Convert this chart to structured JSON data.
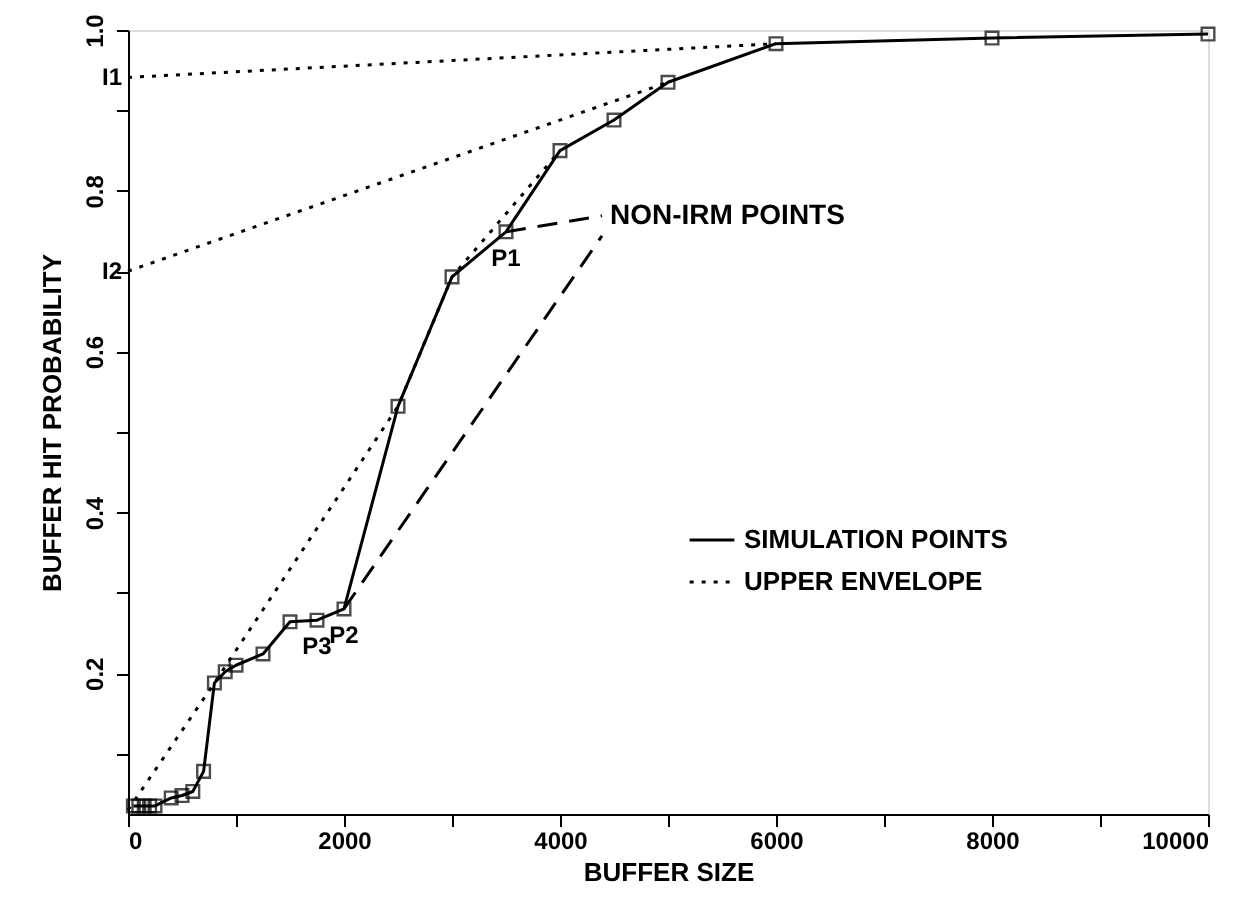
{
  "chart_data": {
    "type": "line",
    "xlabel": "BUFFER SIZE",
    "ylabel": "BUFFER HIT PROBABILITY",
    "xlim": [
      0,
      10000
    ],
    "ylim": [
      0.025,
      1.0
    ],
    "xticks": [
      0,
      {
        "value": 1000,
        "label": null
      },
      2000,
      {
        "value": 3000,
        "label": null
      },
      4000,
      {
        "value": 5000,
        "label": null
      },
      6000,
      {
        "value": 7000,
        "label": null
      },
      8000,
      {
        "value": 9000,
        "label": null
      },
      10000
    ],
    "yticks": [
      {
        "value": 0.1,
        "label": null
      },
      0.2,
      {
        "value": 0.3,
        "label": null
      },
      0.4,
      {
        "value": 0.5,
        "label": null
      },
      0.6,
      {
        "value": 0.7,
        "label": null
      },
      0.8,
      {
        "value": 0.9,
        "label": null
      },
      {
        "value": 1.0,
        "label": "1.0"
      }
    ],
    "series": [
      {
        "name": "SIMULATION POINTS",
        "color": "#000000",
        "line_style": "solid",
        "marker": "square",
        "x": [
          50,
          100,
          150,
          200,
          250,
          400,
          500,
          600,
          700,
          800,
          900,
          1000,
          1250,
          1500,
          1750,
          2000,
          2500,
          3000,
          3500,
          4000,
          4500,
          5000,
          6000,
          8000,
          10000
        ],
        "values": [
          0.035,
          0.035,
          0.035,
          0.035,
          0.035,
          0.045,
          0.048,
          0.053,
          0.078,
          0.188,
          0.202,
          0.21,
          0.224,
          0.264,
          0.266,
          0.28,
          0.532,
          0.693,
          0.749,
          0.85,
          0.888,
          0.935,
          0.983,
          0.99,
          0.995
        ]
      },
      {
        "name": "UPPER ENVELOPE",
        "color": "#000000",
        "line_style": "dotted",
        "marker": "none",
        "x": [
          0,
          800,
          2500,
          3000,
          4000
        ],
        "values": [
          0.03,
          0.188,
          0.532,
          0.693,
          0.85
        ]
      },
      {
        "color": "#000000",
        "line_style": "dotted",
        "marker": "none",
        "x": [
          0,
          5000
        ],
        "values": [
          0.7,
          0.935
        ]
      },
      {
        "color": "#000000",
        "line_style": "dotted",
        "marker": "none",
        "x": [
          0,
          6000
        ],
        "values": [
          0.941,
          0.983
        ]
      }
    ],
    "annotations": [
      {
        "text": "I1",
        "x": 0,
        "y": 0.941
      },
      {
        "text": "I2",
        "x": 0,
        "y": 0.7
      },
      {
        "text": "P1",
        "x": 3500,
        "y": 0.749
      },
      {
        "text": "P2",
        "x": 2000,
        "y": 0.28
      },
      {
        "text": "P3",
        "x": 1750,
        "y": 0.266
      },
      {
        "text": "NON-IRM POINTS",
        "x": 3500,
        "y": 0.749
      }
    ],
    "legend": "right",
    "grid": false
  }
}
